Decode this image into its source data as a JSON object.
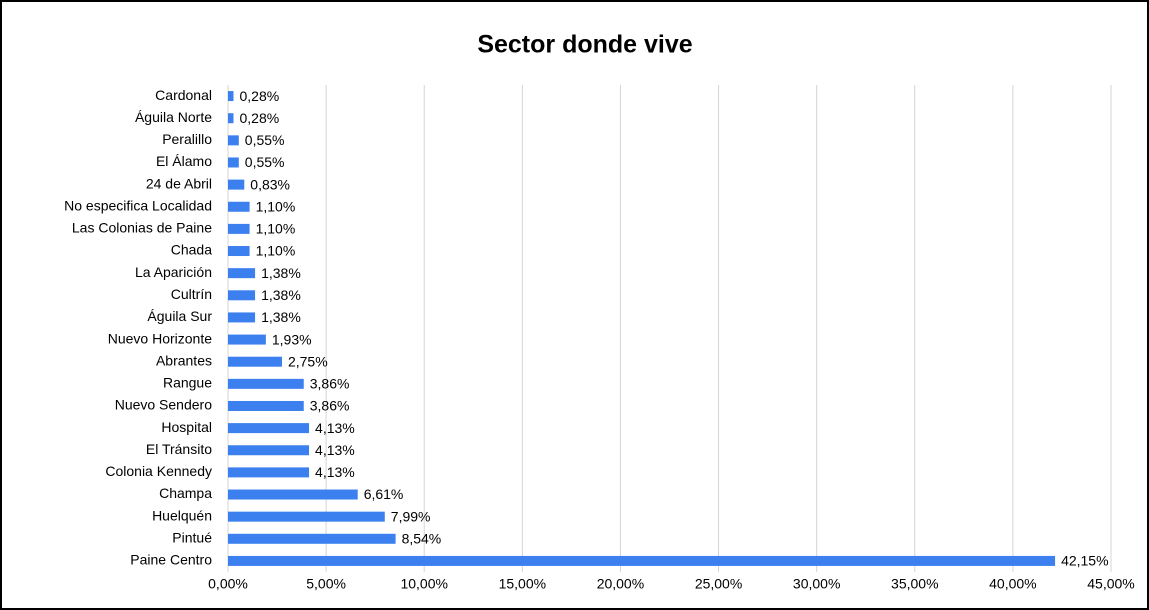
{
  "chart_data": {
    "type": "bar",
    "orientation": "horizontal",
    "title": "Sector donde vive",
    "categories": [
      "Cardonal",
      "Águila Norte",
      "Peralillo",
      "El Álamo",
      "24 de Abril",
      "No especifica Localidad",
      "Las Colonias de Paine",
      "Chada",
      "La Aparición",
      "Cultrín",
      "Águila Sur",
      "Nuevo Horizonte",
      "Abrantes",
      "Rangue",
      "Nuevo Sendero",
      "Hospital",
      "El Tránsito",
      "Colonia Kennedy",
      "Champa",
      "Huelquén",
      "Pintué",
      "Paine Centro"
    ],
    "values": [
      0.28,
      0.28,
      0.55,
      0.55,
      0.83,
      1.1,
      1.1,
      1.1,
      1.38,
      1.38,
      1.38,
      1.93,
      2.75,
      3.86,
      3.86,
      4.13,
      4.13,
      4.13,
      6.61,
      7.99,
      8.54,
      42.15
    ],
    "value_labels": [
      "0,28%",
      "0,28%",
      "0,55%",
      "0,55%",
      "0,83%",
      "1,10%",
      "1,10%",
      "1,10%",
      "1,38%",
      "1,38%",
      "1,38%",
      "1,93%",
      "2,75%",
      "3,86%",
      "3,86%",
      "4,13%",
      "4,13%",
      "4,13%",
      "6,61%",
      "7,99%",
      "8,54%",
      "42,15%"
    ],
    "color": "#3b80ee",
    "xlim": [
      0,
      45
    ],
    "xticks": [
      {
        "value": 0,
        "label": "0,00%"
      },
      {
        "value": 5,
        "label": "5,00%"
      },
      {
        "value": 10,
        "label": "10,00%"
      },
      {
        "value": 15,
        "label": "15,00%"
      },
      {
        "value": 20,
        "label": "20,00%"
      },
      {
        "value": 25,
        "label": "25,00%"
      },
      {
        "value": 30,
        "label": "30,00%"
      },
      {
        "value": 35,
        "label": "35,00%"
      },
      {
        "value": 40,
        "label": "40,00%"
      },
      {
        "value": 45,
        "label": "45,00%"
      }
    ],
    "grid": true
  }
}
